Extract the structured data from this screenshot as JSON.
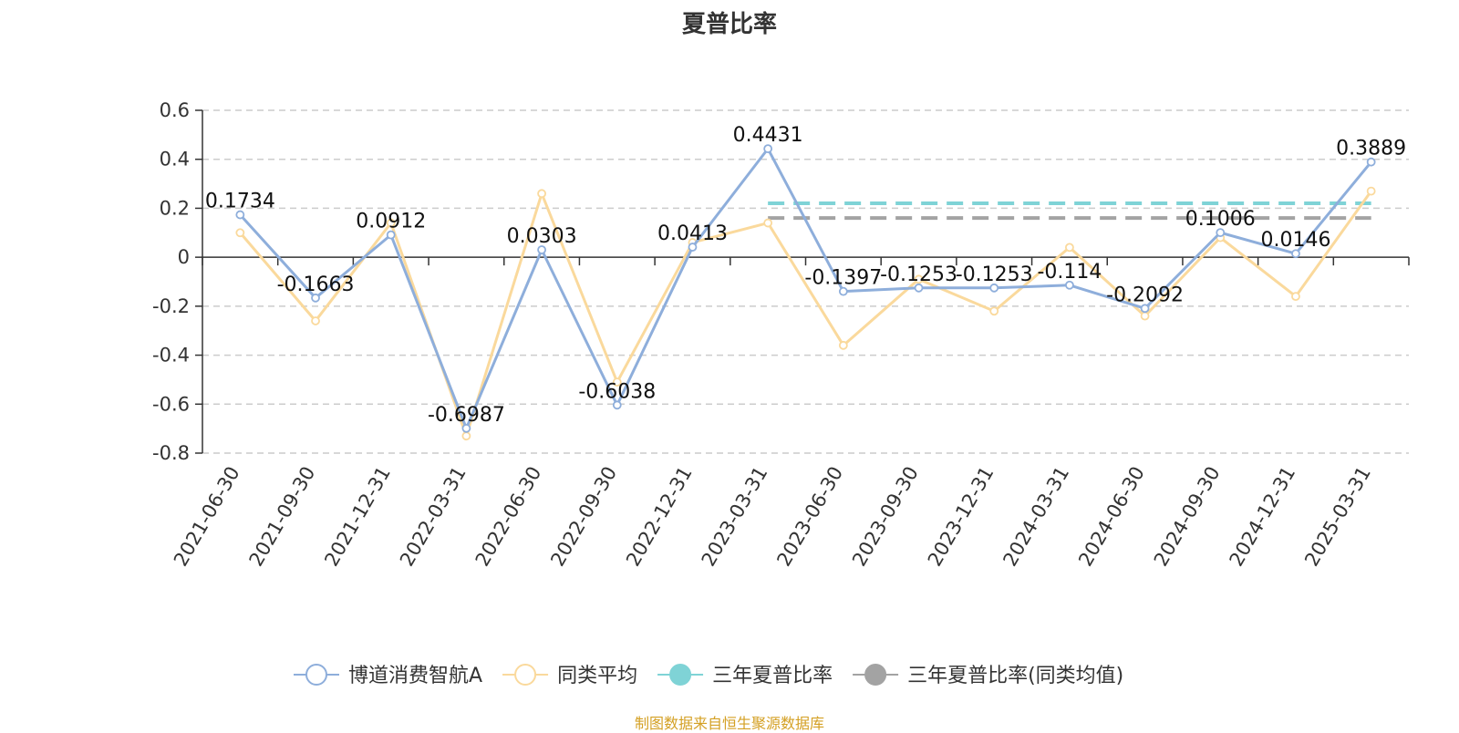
{
  "chart_data": {
    "type": "line",
    "title": "夏普比率",
    "categories": [
      "2021-06-30",
      "2021-09-30",
      "2021-12-31",
      "2022-03-31",
      "2022-06-30",
      "2022-09-30",
      "2022-12-31",
      "2023-03-31",
      "2023-06-30",
      "2023-09-30",
      "2023-12-31",
      "2024-03-31",
      "2024-06-30",
      "2024-09-30",
      "2024-12-31",
      "2025-03-31"
    ],
    "ylim": [
      -0.8,
      0.6
    ],
    "yticks": [
      "0.6",
      "0.4",
      "0.2",
      "0",
      "-0.2",
      "-0.4",
      "-0.6",
      "-0.8"
    ],
    "grid": true,
    "legend_position": "bottom",
    "series": [
      {
        "name": "博道消费智航A",
        "color": "#8eaedb",
        "values": [
          0.1734,
          -0.1663,
          0.0912,
          -0.6987,
          0.0303,
          -0.6038,
          0.0413,
          0.4431,
          -0.1397,
          -0.1253,
          -0.1253,
          -0.114,
          -0.2092,
          0.1006,
          0.0146,
          0.3889
        ],
        "labels": [
          "0.1734",
          "-0.1663",
          "0.0912",
          "-0.6987",
          "0.0303",
          "-0.6038",
          "0.0413",
          "0.4431",
          "-0.1397",
          "-0.1253",
          "-0.1253",
          "-0.114",
          "-0.2092",
          "0.1006",
          "0.0146",
          "0.3889"
        ]
      },
      {
        "name": "同类平均",
        "color": "#fad99c",
        "values": [
          0.1,
          -0.26,
          0.14,
          -0.73,
          0.26,
          -0.51,
          0.06,
          0.14,
          -0.36,
          -0.09,
          -0.22,
          0.04,
          -0.24,
          0.08,
          -0.16,
          0.27
        ]
      },
      {
        "name": "三年夏普比率",
        "color": "#7fd3d6",
        "dashed": true,
        "start_category": "2023-03-31",
        "value": 0.22
      },
      {
        "name": "三年夏普比率(同类均值)",
        "color": "#a3a3a3",
        "dashed": true,
        "start_category": "2023-03-31",
        "value": 0.16
      }
    ]
  },
  "legend": [
    {
      "label": "博道消费智航A",
      "color": "#8eaedb",
      "marker": "hollow"
    },
    {
      "label": "同类平均",
      "color": "#fad99c",
      "marker": "hollow"
    },
    {
      "label": "三年夏普比率",
      "color": "#7fd3d6",
      "marker": "filled"
    },
    {
      "label": "三年夏普比率(同类均值)",
      "color": "#a3a3a3",
      "marker": "filled"
    }
  ],
  "source_note": "制图数据来自恒生聚源数据库"
}
